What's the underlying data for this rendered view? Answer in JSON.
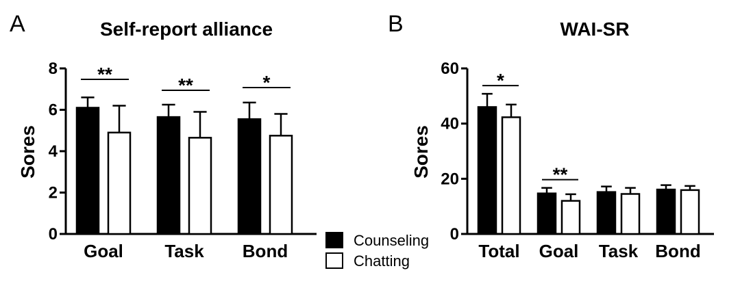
{
  "chart_data": [
    {
      "panel": "A",
      "type": "bar",
      "title": "Self-report alliance",
      "ylabel": "Sores",
      "xlabel": "",
      "ylim": [
        0,
        8
      ],
      "yticks": [
        0,
        2,
        4,
        6,
        8
      ],
      "categories": [
        "Goal",
        "Task",
        "Bond"
      ],
      "series": [
        {
          "name": "Counseling",
          "values": [
            6.1,
            5.65,
            5.55
          ],
          "errors": [
            0.5,
            0.6,
            0.8
          ],
          "color": "#000000"
        },
        {
          "name": "Chatting",
          "values": [
            4.9,
            4.65,
            4.75
          ],
          "errors": [
            1.3,
            1.25,
            1.05
          ],
          "color": "#ffffff"
        }
      ],
      "significance": [
        "**",
        "**",
        "*"
      ]
    },
    {
      "panel": "B",
      "type": "bar",
      "title": "WAI-SR",
      "ylabel": "Sores",
      "xlabel": "",
      "ylim": [
        0,
        60
      ],
      "yticks": [
        0,
        20,
        40,
        60
      ],
      "categories": [
        "Total",
        "Goal",
        "Task",
        "Bond"
      ],
      "series": [
        {
          "name": "Counseling",
          "values": [
            46,
            14.7,
            15.2,
            16.1
          ],
          "errors": [
            4.8,
            2.0,
            2.0,
            1.6
          ],
          "color": "#000000"
        },
        {
          "name": "Chatting",
          "values": [
            42.3,
            12.0,
            14.5,
            15.9
          ],
          "errors": [
            4.6,
            2.4,
            2.2,
            1.5
          ],
          "color": "#ffffff"
        }
      ],
      "significance": [
        "*",
        "**",
        "",
        ""
      ]
    }
  ],
  "legend": {
    "entries": [
      {
        "label": "Counseling",
        "color": "#000000"
      },
      {
        "label": "Chatting",
        "color": "#ffffff"
      }
    ]
  }
}
